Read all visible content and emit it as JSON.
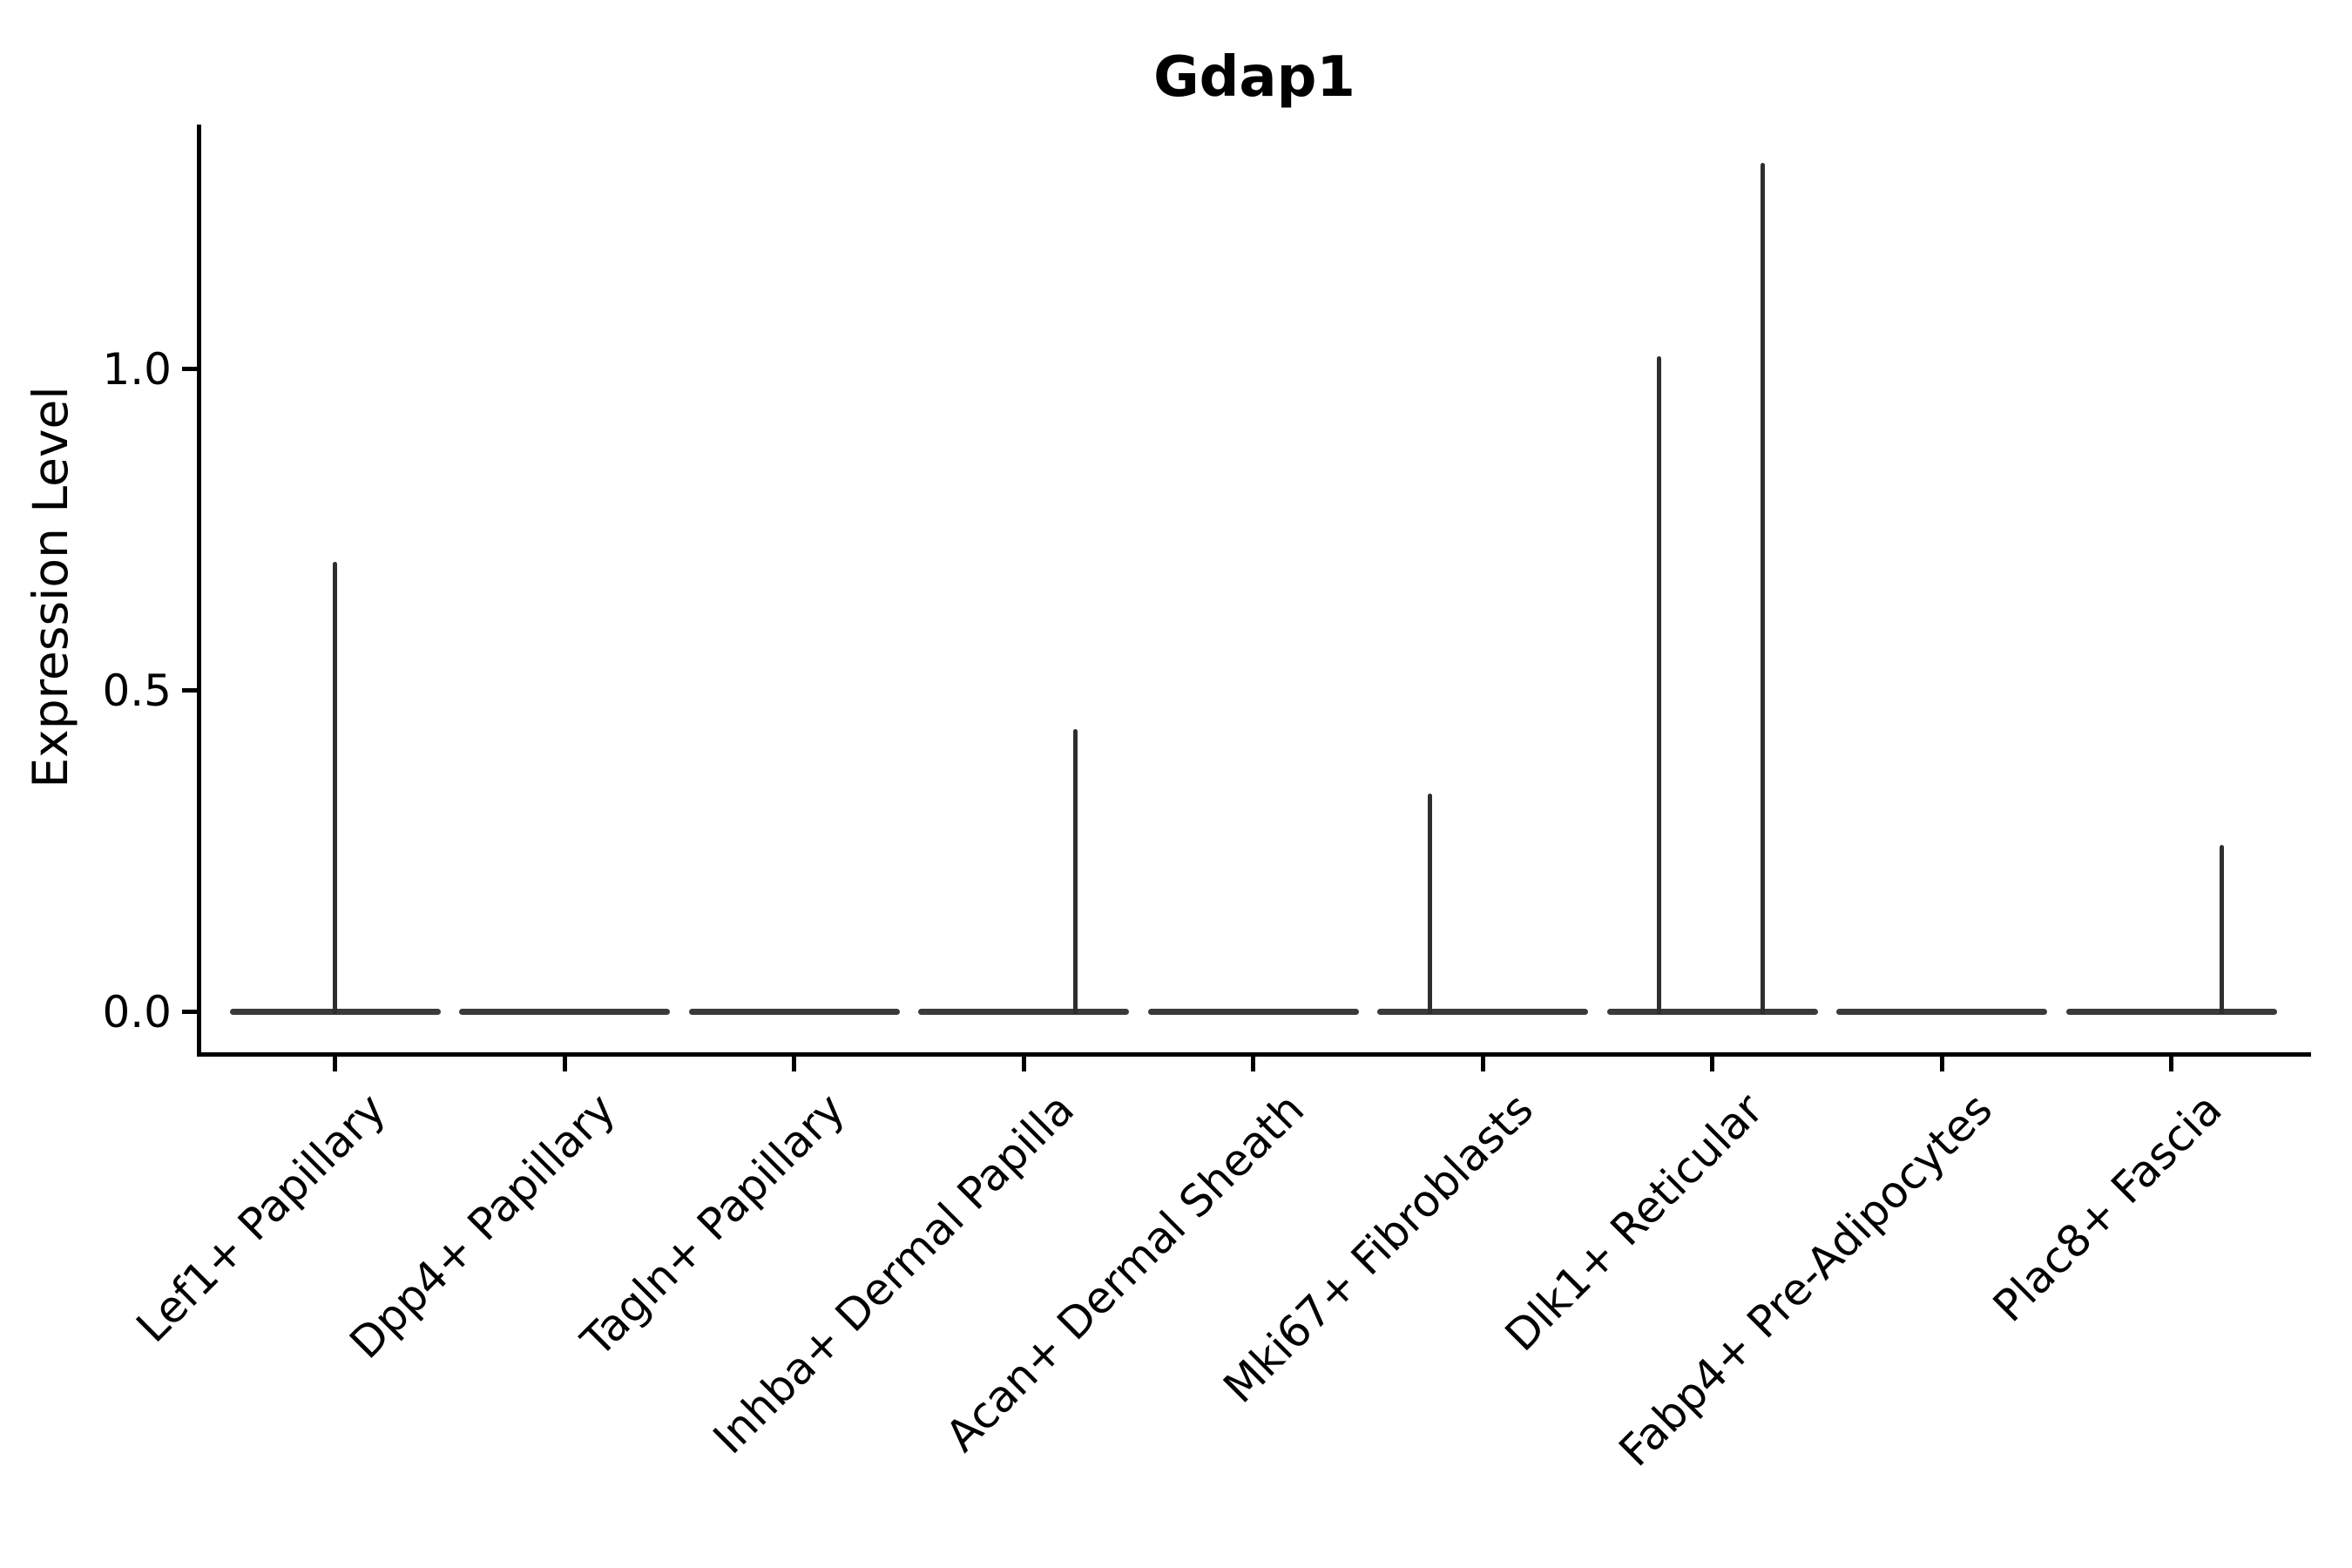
{
  "figure": {
    "title": "Gdap1"
  },
  "axes": {
    "ylabel": "Expression Level",
    "yticks": [
      {
        "label": "0.0",
        "value": 0.0
      },
      {
        "label": "0.5",
        "value": 0.5
      },
      {
        "label": "1.0",
        "value": 1.0
      }
    ]
  },
  "chart_data": {
    "type": "violin",
    "title": "Gdap1",
    "xlabel": "",
    "ylabel": "Expression Level",
    "ylim": [
      -0.066,
      1.38
    ],
    "yticks": [
      0.0,
      0.5,
      1.0
    ],
    "grid": false,
    "legend": "none",
    "description": "Violin plot of Gdap1 expression per fibroblast subtype; all distributions are concentrated at 0 with thin density spikes reaching the maximum expressing cells.",
    "categories": [
      "Lef1+ Papillary",
      "Dpp4+ Papillary",
      "Tagln+ Papillary",
      "Inhba+ Dermal Papilla",
      "Acan+ Dermal Sheath",
      "Mki67+ Fibroblasts",
      "Dlk1+ Reticular",
      "Fabp4+ Pre-Adipocytes",
      "Plac8+ Fascia"
    ],
    "series": [
      {
        "name": "Lef1+ Papillary",
        "baseline_value": 0.0,
        "max_expression": 0.7,
        "spikes": [
          {
            "offset_frac": 0.0,
            "value": 0.7
          }
        ]
      },
      {
        "name": "Dpp4+ Papillary",
        "baseline_value": 0.0,
        "max_expression": 0.0,
        "spikes": []
      },
      {
        "name": "Tagln+ Papillary",
        "baseline_value": 0.0,
        "max_expression": 0.0,
        "spikes": []
      },
      {
        "name": "Inhba+ Dermal Papilla",
        "baseline_value": 0.0,
        "max_expression": 0.44,
        "spikes": [
          {
            "offset_frac": 0.224,
            "value": 0.44
          }
        ]
      },
      {
        "name": "Acan+ Dermal Sheath",
        "baseline_value": 0.0,
        "max_expression": 0.0,
        "spikes": []
      },
      {
        "name": "Mki67+ Fibroblasts",
        "baseline_value": 0.0,
        "max_expression": 0.34,
        "spikes": [
          {
            "offset_frac": -0.232,
            "value": 0.34
          }
        ]
      },
      {
        "name": "Dlk1+ Reticular",
        "baseline_value": 0.0,
        "max_expression": 1.32,
        "spikes": [
          {
            "offset_frac": -0.233,
            "value": 1.02
          },
          {
            "offset_frac": 0.218,
            "value": 1.32
          }
        ]
      },
      {
        "name": "Fabp4+ Pre-Adipocytes",
        "baseline_value": 0.0,
        "max_expression": 0.0,
        "spikes": []
      },
      {
        "name": "Plac8+ Fascia",
        "baseline_value": 0.0,
        "max_expression": 0.26,
        "spikes": [
          {
            "offset_frac": 0.218,
            "value": 0.26
          }
        ]
      }
    ],
    "violin_body_width_frac": 0.92,
    "colors": {
      "violin_stroke": "#3a3a3a",
      "spike_stroke": "#2e2e2e",
      "axis": "#000000",
      "text": "#000000",
      "background": "#ffffff"
    }
  }
}
